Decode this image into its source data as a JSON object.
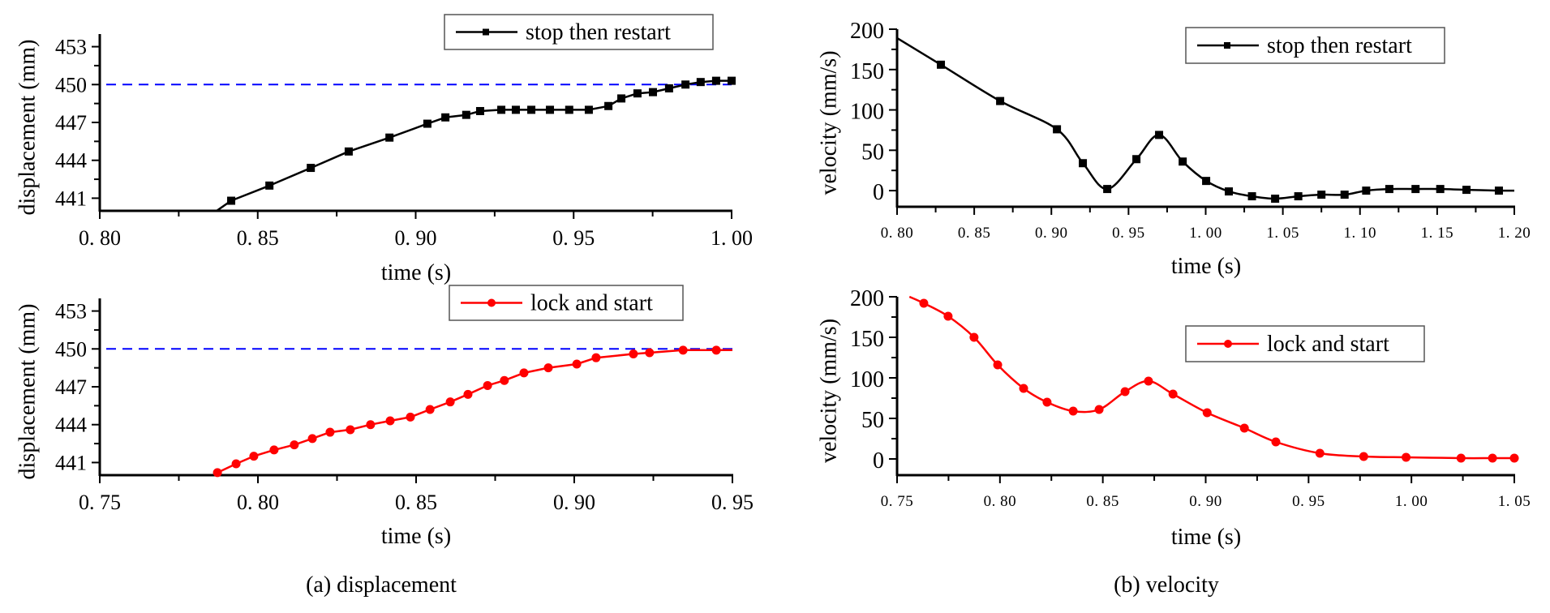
{
  "figure": {
    "captions": [
      "(a) displacement",
      "(b) velocity"
    ]
  },
  "chart_data": [
    {
      "id": "disp-stop",
      "type": "line",
      "panel": "(a) displacement, top",
      "xlabel": "time (s)",
      "ylabel": "displacement (mm)",
      "xlim": [
        0.8,
        1.0
      ],
      "ylim": [
        440,
        454
      ],
      "xticks": [
        0.8,
        0.85,
        0.9,
        0.95,
        1.0
      ],
      "xtick_labels": [
        "0. 80",
        "0. 85",
        "0. 90",
        "0. 95",
        "1. 00"
      ],
      "yticks": [
        441,
        444,
        447,
        450,
        453
      ],
      "ytick_labels": [
        "441",
        "444",
        "447",
        "450",
        "453"
      ],
      "grid": false,
      "legend_position": "top-right",
      "reference_line": {
        "y": 450,
        "style": "dashed",
        "color": "#0000ff"
      },
      "series": [
        {
          "name": "stop then restart",
          "color": "#000000",
          "marker": "square",
          "line_start": [
            0.837,
            440.0
          ],
          "x": [
            0.8416,
            0.8537,
            0.8668,
            0.8788,
            0.8917,
            0.9037,
            0.9094,
            0.916,
            0.9204,
            0.9271,
            0.9317,
            0.9366,
            0.9425,
            0.9486,
            0.9548,
            0.961,
            0.9651,
            0.9702,
            0.9751,
            0.9802,
            0.9854,
            0.9902,
            0.9951,
            1.0
          ],
          "y": [
            440.8,
            442.0,
            443.4,
            444.7,
            445.8,
            446.9,
            447.4,
            447.6,
            447.9,
            448.0,
            448.0,
            448.0,
            448.0,
            448.0,
            448.0,
            448.3,
            448.9,
            449.3,
            449.4,
            449.7,
            450.0,
            450.2,
            450.3,
            450.3
          ]
        }
      ]
    },
    {
      "id": "disp-lock",
      "type": "line",
      "panel": "(a) displacement, bottom",
      "xlabel": "time (s)",
      "ylabel": "displacement (mm)",
      "xlim": [
        0.75,
        0.95
      ],
      "ylim": [
        440,
        454
      ],
      "xticks": [
        0.75,
        0.8,
        0.85,
        0.9,
        0.95
      ],
      "xtick_labels": [
        "0. 75",
        "0. 80",
        "0. 85",
        "0. 90",
        "0. 95"
      ],
      "yticks": [
        441,
        444,
        447,
        450,
        453
      ],
      "ytick_labels": [
        "441",
        "444",
        "447",
        "450",
        "453"
      ],
      "grid": false,
      "legend_position": "top-right",
      "reference_line": {
        "y": 450,
        "style": "dashed",
        "color": "#0000ff"
      },
      "series": [
        {
          "name": "lock and start",
          "color": "#ff0000",
          "marker": "circle",
          "line_end_x": 0.95,
          "x": [
            0.7872,
            0.7931,
            0.7987,
            0.8051,
            0.8115,
            0.8172,
            0.8228,
            0.8292,
            0.8356,
            0.8418,
            0.8482,
            0.8544,
            0.8608,
            0.8664,
            0.8726,
            0.8779,
            0.8841,
            0.8918,
            0.9008,
            0.9069,
            0.9187,
            0.9238,
            0.9344,
            0.9449
          ],
          "y": [
            440.2,
            440.9,
            441.5,
            442.0,
            442.4,
            442.9,
            443.4,
            443.6,
            444.0,
            444.3,
            444.6,
            445.2,
            445.8,
            446.4,
            447.1,
            447.5,
            448.1,
            448.5,
            448.8,
            449.3,
            449.6,
            449.7,
            449.9,
            449.9
          ]
        }
      ]
    },
    {
      "id": "vel-stop",
      "type": "line",
      "panel": "(b) velocity, top",
      "xlabel": "time (s)",
      "ylabel": "velocity (mm/s)",
      "xlim": [
        0.8,
        1.2
      ],
      "ylim": [
        -20,
        200
      ],
      "xticks": [
        0.8,
        0.85,
        0.9,
        0.95,
        1.0,
        1.05,
        1.1,
        1.15,
        1.2
      ],
      "xtick_labels": [
        "0. 80",
        "0. 85",
        "0. 90",
        "0. 95",
        "1. 00",
        "1. 05",
        "1. 10",
        "1. 15",
        "1. 20"
      ],
      "yticks": [
        0,
        50,
        100,
        150,
        200
      ],
      "ytick_labels": [
        "0",
        "50",
        "100",
        "150",
        "200"
      ],
      "grid": false,
      "legend_position": "top-right",
      "series": [
        {
          "name": "stop then restart",
          "color": "#000000",
          "marker": "square",
          "line_start": [
            0.8,
            189
          ],
          "line_end_x": 1.2,
          "x": [
            0.8284,
            0.8668,
            0.9036,
            0.9204,
            0.9362,
            0.9551,
            0.9698,
            0.9851,
            1.0003,
            1.015,
            1.03,
            1.045,
            1.06,
            1.075,
            1.09,
            1.104,
            1.119,
            1.136,
            1.152,
            1.169,
            1.19
          ],
          "y": [
            156,
            111,
            76,
            34,
            2,
            39,
            69,
            36,
            12,
            -1,
            -7,
            -10,
            -7,
            -5,
            -5,
            0,
            2,
            2,
            2,
            1,
            0
          ]
        }
      ]
    },
    {
      "id": "vel-lock",
      "type": "line",
      "panel": "(b) velocity, bottom",
      "xlabel": "time (s)",
      "ylabel": "velocity (mm/s)",
      "xlim": [
        0.75,
        1.05
      ],
      "ylim": [
        -20,
        200
      ],
      "xticks": [
        0.75,
        0.8,
        0.85,
        0.9,
        0.95,
        1.0,
        1.05
      ],
      "xtick_labels": [
        "0. 75",
        "0. 80",
        "0. 85",
        "0. 90",
        "0. 95",
        "1. 00",
        "1. 05"
      ],
      "yticks": [
        0,
        50,
        100,
        150,
        200
      ],
      "ytick_labels": [
        "0",
        "50",
        "100",
        "150",
        "200"
      ],
      "grid": false,
      "legend_position": "top-right",
      "series": [
        {
          "name": "lock and start",
          "color": "#ff0000",
          "marker": "circle",
          "line_start": [
            0.756,
            200
          ],
          "x": [
            0.763,
            0.7748,
            0.7874,
            0.7989,
            0.8115,
            0.8229,
            0.8356,
            0.8482,
            0.8608,
            0.8722,
            0.8841,
            0.9007,
            0.9188,
            0.9341,
            0.9555,
            0.9768,
            0.9974,
            1.0241,
            1.0394,
            1.05
          ],
          "y": [
            192,
            176,
            150,
            116,
            87,
            70,
            59,
            61,
            83,
            96,
            80,
            57,
            38,
            21,
            7,
            3,
            2,
            1,
            1,
            1
          ]
        }
      ]
    }
  ]
}
